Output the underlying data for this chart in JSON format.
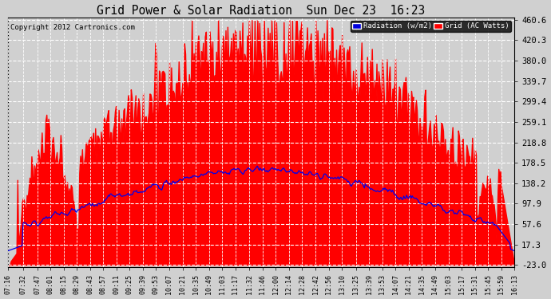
{
  "title": "Grid Power & Solar Radiation  Sun Dec 23  16:23",
  "copyright": "Copyright 2012 Cartronics.com",
  "legend_radiation": "Radiation (w/m2)",
  "legend_grid": "Grid (AC Watts)",
  "ylabel_right_ticks": [
    460.6,
    420.3,
    380.0,
    339.7,
    299.4,
    259.1,
    218.8,
    178.5,
    138.2,
    97.9,
    57.6,
    17.3,
    -23.0
  ],
  "ymin": -23.0,
  "ymax": 460.6,
  "background_color": "#d0d0d0",
  "plot_background": "#d0d0d0",
  "grid_color": "white",
  "red_fill_color": "#ff0000",
  "blue_line_color": "#0000ee",
  "title_color": "black",
  "xtick_labels": [
    "07:16",
    "07:32",
    "07:47",
    "08:01",
    "08:15",
    "08:29",
    "08:43",
    "08:57",
    "09:11",
    "09:25",
    "09:39",
    "09:53",
    "10:07",
    "10:21",
    "10:35",
    "10:49",
    "11:03",
    "11:17",
    "11:32",
    "11:46",
    "12:00",
    "12:14",
    "12:28",
    "12:42",
    "12:56",
    "13:10",
    "13:25",
    "13:39",
    "13:53",
    "14:07",
    "14:21",
    "14:35",
    "14:49",
    "15:03",
    "15:17",
    "15:31",
    "15:45",
    "15:59",
    "16:13"
  ]
}
